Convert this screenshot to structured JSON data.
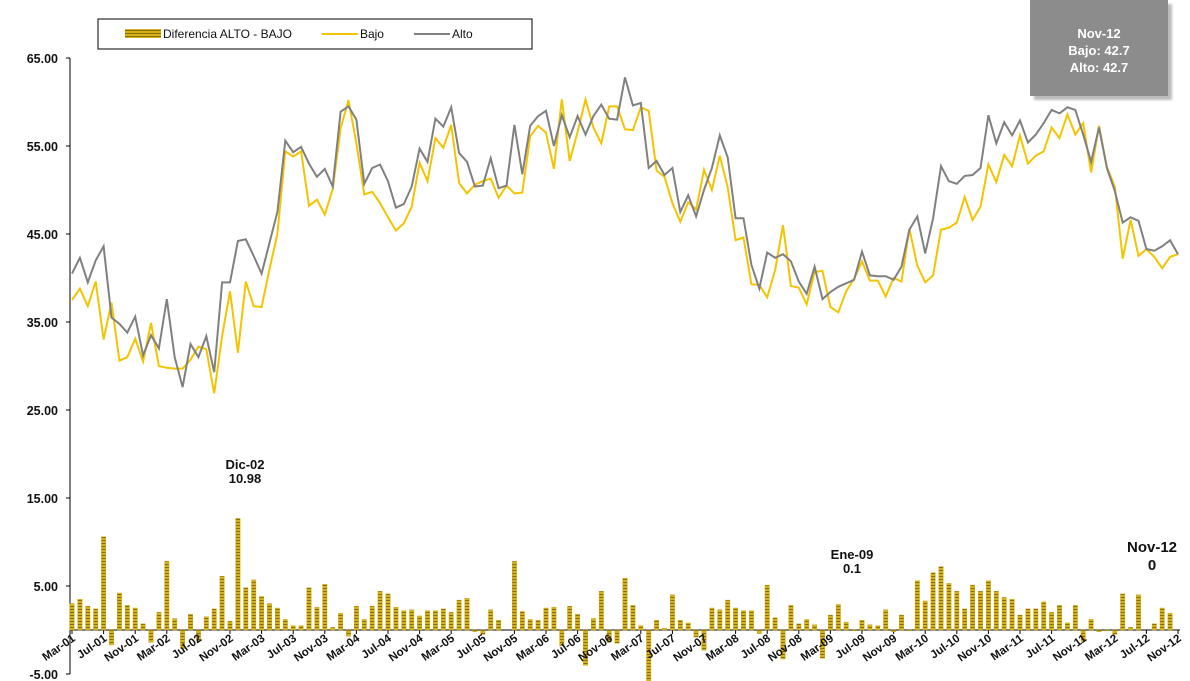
{
  "chart_data": {
    "type": "bar_line",
    "categories": [
      "Mar-01",
      null,
      null,
      null,
      "Jul-01",
      null,
      null,
      null,
      "Nov-01",
      null,
      null,
      null,
      "Mar-02",
      null,
      null,
      null,
      "Jul-02",
      null,
      null,
      null,
      "Nov-02",
      null,
      null,
      null,
      "Mar-03",
      null,
      null,
      null,
      "Jul-03",
      null,
      null,
      null,
      "Nov-03",
      null,
      null,
      null,
      "Mar-04",
      null,
      null,
      null,
      "Jul-04",
      null,
      null,
      null,
      "Nov-04",
      null,
      null,
      null,
      "Mar-05",
      null,
      null,
      null,
      "Jul-05",
      null,
      null,
      null,
      "Nov-05",
      null,
      null,
      null,
      "Mar-06",
      null,
      null,
      null,
      "Jul-06",
      null,
      null,
      null,
      "Nov-06",
      null,
      null,
      null,
      "Mar-07",
      null,
      null,
      null,
      "Jul-07",
      null,
      null,
      null,
      "Nov-07",
      null,
      null,
      null,
      "Mar-08",
      null,
      null,
      null,
      "Jul-08",
      null,
      null,
      null,
      "Nov-08",
      null,
      null,
      null,
      "Mar-09",
      null,
      null,
      null,
      "Jul-09",
      null,
      null,
      null,
      "Nov-09",
      null,
      null,
      null,
      "Mar-10",
      null,
      null,
      null,
      "Jul-10",
      null,
      null,
      null,
      "Nov-10",
      null,
      null,
      null,
      "Mar-11",
      null,
      null,
      null,
      "Jul-11",
      null,
      null,
      null,
      "Nov-11",
      null,
      null,
      null,
      "Mar-12",
      null,
      null,
      null,
      "Jul-12",
      null,
      null,
      null,
      "Nov-12"
    ],
    "series": [
      {
        "name": "Diferencia ALTO - BAJO",
        "type": "bar",
        "color": "#c9a30a",
        "values": [
          3.0,
          3.5,
          2.7,
          2.4,
          10.6,
          -1.7,
          4.2,
          2.8,
          2.5,
          0.7,
          -1.4,
          2.0,
          7.8,
          1.3,
          -2.1,
          1.8,
          -1.2,
          1.5,
          2.4,
          6.1,
          1.0,
          12.7,
          4.8,
          5.7,
          3.8,
          3.0,
          2.5,
          1.2,
          0.5,
          0.5,
          4.8,
          2.6,
          5.2,
          0.3,
          1.9,
          -0.7,
          2.7,
          1.2,
          2.7,
          4.4,
          4.1,
          2.6,
          2.2,
          2.3,
          1.6,
          2.2,
          2.2,
          2.4,
          2.0,
          3.4,
          3.6,
          -0.2,
          -0.5,
          2.3,
          1.1,
          0,
          7.8,
          2.1,
          1.2,
          1.1,
          2.5,
          2.6,
          -1.8,
          2.7,
          1.8,
          -4.0,
          1.3,
          4.4,
          -1.4,
          -1.5,
          5.9,
          2.8,
          0.5,
          -6.5,
          1.1,
          0.2,
          4.0,
          1.1,
          0.8,
          -0.8,
          -2.3,
          2.5,
          2.3,
          3.4,
          2.5,
          2.2,
          2.2,
          -0.4,
          5.1,
          1.4,
          -3.3,
          2.8,
          0.7,
          1.2,
          0.6,
          -3.2,
          1.7,
          2.9,
          0.9,
          -0.1,
          1.1,
          0.6,
          0.5,
          2.3,
          -0.2,
          1.7,
          -0.1,
          5.6,
          3.3,
          6.5,
          7.2,
          5.3,
          4.4,
          2.4,
          5.1,
          4.4,
          5.6,
          4.4,
          3.7,
          3.5,
          1.7,
          2.4,
          2.4,
          3.2,
          2.0,
          2.8,
          0.8,
          2.8,
          -1.3,
          1.2,
          -0.2,
          -0.1,
          -0.5,
          4.1,
          0.3,
          4.0,
          0,
          0.7,
          2.5,
          1.9,
          0
        ]
      },
      {
        "name": "Bajo",
        "type": "line",
        "color": "#f5c400",
        "values": [
          37.5,
          38.8,
          36.8,
          39.6,
          33,
          37.2,
          30.6,
          31,
          33.1,
          30.5,
          34.9,
          30,
          29.8,
          29.7,
          29.7,
          30.7,
          32.2,
          31.9,
          26.9,
          33.4,
          38.5,
          31.5,
          39.6,
          36.8,
          36.7,
          41,
          45,
          54.4,
          53.8,
          54.4,
          48.2,
          48.9,
          47.2,
          50.1,
          57,
          60.2,
          55.3,
          49.5,
          49.8,
          48.5,
          46.9,
          45.4,
          46.2,
          48.1,
          53.1,
          51,
          55.9,
          54.8,
          57.4,
          50.8,
          49.6,
          50.6,
          51,
          51.3,
          49.1,
          50.5,
          49.6,
          49.7,
          56.1,
          57.3,
          56.5,
          52.4,
          60.3,
          53.3,
          56.6,
          60.3,
          57.1,
          55.3,
          59.5,
          59.5,
          56.9,
          56.8,
          59.4,
          59,
          52.2,
          51.5,
          48.5,
          46.4,
          48.6,
          47.8,
          52.3,
          50,
          53.9,
          50.3,
          44.3,
          44.6,
          39.3,
          39.2,
          37.8,
          40.9,
          46,
          39.1,
          38.9,
          37,
          40.7,
          40.8,
          36.7,
          36.1,
          38.5,
          39.9,
          41.9,
          39.7,
          39.7,
          37.9,
          40,
          39.6,
          45.6,
          41.4,
          39.5,
          40.3,
          45.5,
          45.7,
          46.3,
          49.2,
          46.6,
          48.1,
          52.9,
          50.9,
          54,
          52.7,
          56.2,
          53,
          53.9,
          54.4,
          57.1,
          55.9,
          58.6,
          56.3,
          57.6,
          52,
          57.3,
          52.6,
          50.4,
          42.2,
          46.6,
          42.5,
          43.3,
          42.4,
          41.1,
          42.4,
          42.7
        ]
      },
      {
        "name": "Alto",
        "type": "line",
        "color": "#808080",
        "values": [
          40.5,
          42.3,
          39.5,
          42,
          43.6,
          35.5,
          34.8,
          33.8,
          35.6,
          31.2,
          33.5,
          32,
          37.6,
          31,
          27.6,
          32.5,
          31,
          33.4,
          29.3,
          39.5,
          39.5,
          44.2,
          44.4,
          42.5,
          40.5,
          44,
          47.5,
          55.6,
          54.3,
          54.9,
          53,
          51.5,
          52.4,
          50.4,
          58.9,
          59.5,
          58,
          50.7,
          52.5,
          52.9,
          51,
          48,
          48.4,
          50.4,
          54.7,
          53.2,
          58.1,
          57.2,
          59.4,
          54.2,
          53.2,
          50.4,
          50.5,
          53.6,
          50.2,
          50.5,
          57.4,
          51.8,
          57.3,
          58.4,
          59,
          55,
          58.5,
          56,
          58.4,
          56.3,
          58.4,
          59.7,
          58.1,
          58,
          62.8,
          59.6,
          59.9,
          52.5,
          53.3,
          51.7,
          52.5,
          47.5,
          49.4,
          47,
          50,
          52.5,
          56.2,
          53.7,
          46.8,
          46.8,
          41.5,
          38.8,
          42.9,
          42.3,
          42.7,
          41.9,
          39.6,
          38.2,
          41.3,
          37.6,
          38.4,
          39,
          39.4,
          39.8,
          43,
          40.3,
          40.2,
          40.2,
          39.8,
          41.3,
          45.5,
          47,
          42.8,
          46.8,
          52.7,
          51,
          50.7,
          51.6,
          51.7,
          52.5,
          58.5,
          55.3,
          57.7,
          56.2,
          57.9,
          55.4,
          56.3,
          57.6,
          59.1,
          58.7,
          59.4,
          59.1,
          56.3,
          53.2,
          57.1,
          52.5,
          49.9,
          46.3,
          46.9,
          46.5,
          43.3,
          43.1,
          43.6,
          44.3,
          42.7
        ]
      }
    ],
    "ylim": [
      -5,
      65
    ],
    "yticks": [
      {
        "value": -5,
        "label": "-5.00"
      },
      {
        "value": 5,
        "label": "5.00"
      },
      {
        "value": 15,
        "label": "15.00"
      },
      {
        "value": 25,
        "label": "25.00"
      },
      {
        "value": 35,
        "label": "35.00"
      },
      {
        "value": 45,
        "label": "45.00"
      },
      {
        "value": 55,
        "label": "55.00"
      },
      {
        "value": 65,
        "label": "65.00"
      }
    ],
    "annotations": [
      {
        "text": "Dic-02",
        "value": 10.98
      },
      {
        "text": "Ene-09",
        "value": 0.1
      },
      {
        "text": "Nov-12",
        "value": 0
      }
    ],
    "info_box": [
      "Nov-12",
      "Bajo: 42.7",
      "Alto: 42.7"
    ],
    "legend": "top-left"
  }
}
